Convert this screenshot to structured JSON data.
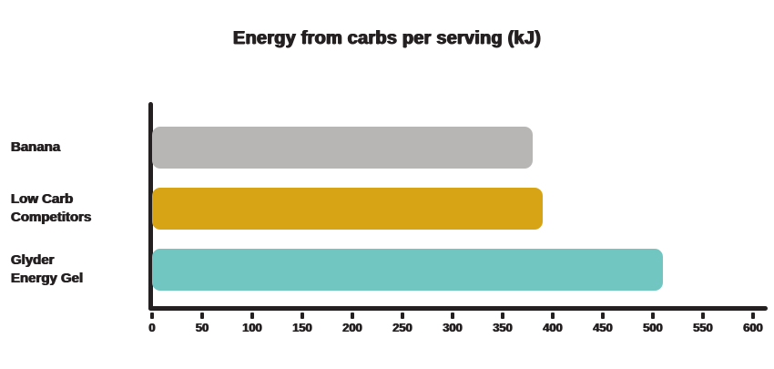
{
  "chart_data": {
    "type": "bar",
    "orientation": "horizontal",
    "title": "Energy from carbs per serving (kJ)",
    "categories": [
      "Banana",
      "Low Carb\nCompetitors",
      "Glyder\nEnergy Gel"
    ],
    "values": [
      380,
      390,
      510
    ],
    "bar_colors": [
      "#b7b6b5",
      "#d6a414",
      "#72c6c1"
    ],
    "xlabel": "",
    "ylabel": "",
    "xlim": [
      0,
      600
    ],
    "x_ticks": [
      0,
      50,
      100,
      150,
      200,
      250,
      300,
      350,
      400,
      450,
      500,
      550,
      600
    ],
    "grid": false,
    "axis_color": "#242021",
    "text_color": "#242021",
    "background": "#ffffff"
  }
}
